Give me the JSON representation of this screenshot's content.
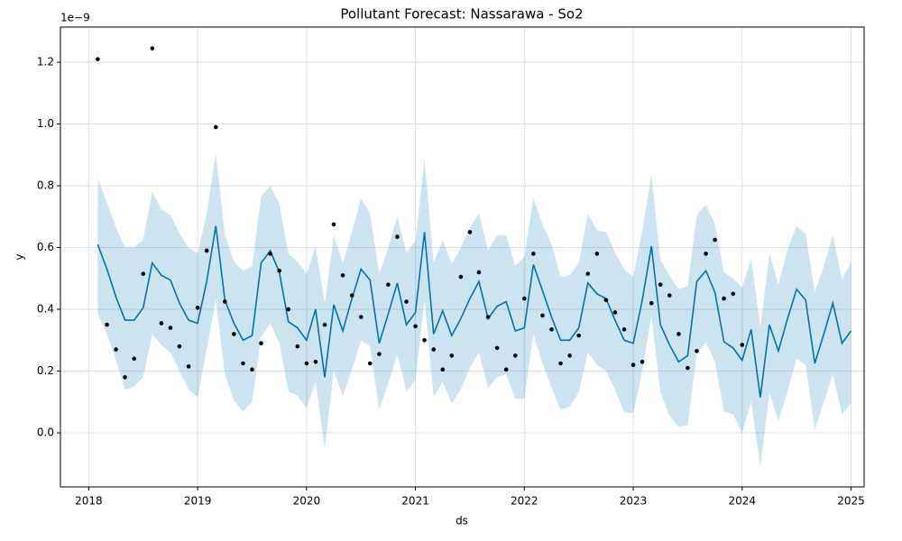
{
  "chart_data": {
    "type": "line",
    "title": "Pollutant Forecast: Nassarawa - So2",
    "xlabel": "ds",
    "ylabel": "y",
    "y_offset_label": "1e−9",
    "x": [
      2018.083,
      2018.167,
      2018.25,
      2018.333,
      2018.417,
      2018.5,
      2018.583,
      2018.667,
      2018.75,
      2018.833,
      2018.917,
      2019,
      2019.083,
      2019.167,
      2019.25,
      2019.333,
      2019.417,
      2019.5,
      2019.583,
      2019.667,
      2019.75,
      2019.833,
      2019.917,
      2020,
      2020.083,
      2020.167,
      2020.25,
      2020.333,
      2020.417,
      2020.5,
      2020.583,
      2020.667,
      2020.75,
      2020.833,
      2020.917,
      2021,
      2021.083,
      2021.167,
      2021.25,
      2021.333,
      2021.417,
      2021.5,
      2021.583,
      2021.667,
      2021.75,
      2021.833,
      2021.917,
      2022,
      2022.083,
      2022.167,
      2022.25,
      2022.333,
      2022.417,
      2022.5,
      2022.583,
      2022.667,
      2022.75,
      2022.833,
      2022.917,
      2023,
      2023.083,
      2023.167,
      2023.25,
      2023.333,
      2023.417,
      2023.5,
      2023.583,
      2023.667,
      2023.75,
      2023.833,
      2023.917,
      2024,
      2024.083,
      2024.167,
      2024.25,
      2024.333,
      2024.417,
      2024.5,
      2024.583,
      2024.667,
      2024.75,
      2024.833,
      2024.917,
      2025
    ],
    "series": [
      {
        "color": "#0072B2",
        "values": [
          0.61,
          0.53,
          0.44,
          0.365,
          0.365,
          0.405,
          0.55,
          0.51,
          0.495,
          0.42,
          0.365,
          0.355,
          0.49,
          0.67,
          0.43,
          0.355,
          0.3,
          0.315,
          0.55,
          0.59,
          0.52,
          0.36,
          0.34,
          0.3,
          0.4,
          0.18,
          0.415,
          0.33,
          0.435,
          0.53,
          0.495,
          0.29,
          0.385,
          0.485,
          0.35,
          0.39,
          0.65,
          0.32,
          0.395,
          0.315,
          0.37,
          0.435,
          0.49,
          0.37,
          0.41,
          0.425,
          0.33,
          0.34,
          0.545,
          0.46,
          0.375,
          0.3,
          0.3,
          0.34,
          0.485,
          0.45,
          0.435,
          0.365,
          0.3,
          0.29,
          0.43,
          0.605,
          0.35,
          0.285,
          0.23,
          0.25,
          0.49,
          0.525,
          0.455,
          0.295,
          0.275,
          0.235,
          0.335,
          0.115,
          0.35,
          0.265,
          0.37,
          0.465,
          0.43,
          0.225,
          0.32,
          0.42,
          0.29,
          0.33
        ]
      }
    ],
    "band": {
      "color": "#0072B2",
      "upper": [
        0.825,
        0.745,
        0.665,
        0.6,
        0.6,
        0.625,
        0.78,
        0.725,
        0.705,
        0.645,
        0.6,
        0.58,
        0.71,
        0.905,
        0.64,
        0.555,
        0.525,
        0.54,
        0.765,
        0.8,
        0.74,
        0.58,
        0.555,
        0.515,
        0.605,
        0.42,
        0.64,
        0.55,
        0.65,
        0.76,
        0.71,
        0.515,
        0.6,
        0.7,
        0.585,
        0.62,
        0.885,
        0.55,
        0.625,
        0.545,
        0.6,
        0.665,
        0.71,
        0.59,
        0.64,
        0.64,
        0.54,
        0.57,
        0.76,
        0.675,
        0.61,
        0.505,
        0.51,
        0.55,
        0.71,
        0.655,
        0.65,
        0.585,
        0.53,
        0.505,
        0.655,
        0.835,
        0.56,
        0.51,
        0.465,
        0.475,
        0.705,
        0.74,
        0.675,
        0.52,
        0.5,
        0.47,
        0.565,
        0.34,
        0.58,
        0.48,
        0.595,
        0.67,
        0.645,
        0.455,
        0.54,
        0.64,
        0.495,
        0.555
      ],
      "lower": [
        0.385,
        0.32,
        0.235,
        0.14,
        0.15,
        0.18,
        0.32,
        0.285,
        0.26,
        0.2,
        0.14,
        0.115,
        0.27,
        0.43,
        0.19,
        0.105,
        0.07,
        0.1,
        0.31,
        0.355,
        0.29,
        0.135,
        0.12,
        0.08,
        0.165,
        -0.05,
        0.2,
        0.12,
        0.205,
        0.3,
        0.28,
        0.075,
        0.16,
        0.255,
        0.135,
        0.17,
        0.43,
        0.115,
        0.165,
        0.095,
        0.14,
        0.21,
        0.26,
        0.145,
        0.18,
        0.19,
        0.11,
        0.11,
        0.32,
        0.225,
        0.145,
        0.075,
        0.085,
        0.13,
        0.26,
        0.22,
        0.2,
        0.14,
        0.065,
        0.065,
        0.2,
        0.38,
        0.13,
        0.055,
        0.02,
        0.025,
        0.255,
        0.295,
        0.23,
        0.07,
        0.06,
        0.0,
        0.1,
        -0.11,
        0.13,
        0.04,
        0.135,
        0.24,
        0.22,
        0.01,
        0.1,
        0.19,
        0.06,
        0.095
      ]
    },
    "points": {
      "color": "#000000",
      "values": [
        1.21,
        0.35,
        0.27,
        0.18,
        0.24,
        0.515,
        1.245,
        0.355,
        0.34,
        0.28,
        0.215,
        0.405,
        0.59,
        0.99,
        0.425,
        0.32,
        0.225,
        0.205,
        0.29,
        0.58,
        0.525,
        0.4,
        0.28,
        0.225,
        0.23,
        0.35,
        0.675,
        0.51,
        0.445,
        0.375,
        0.225,
        0.255,
        0.48,
        0.635,
        0.425,
        0.345,
        0.3,
        0.27,
        0.205,
        0.25,
        0.505,
        0.65,
        0.52,
        0.375,
        0.275,
        0.205,
        0.25,
        0.435,
        0.58,
        0.38,
        0.335,
        0.225,
        0.25,
        0.315,
        0.515,
        0.58,
        0.43,
        0.39,
        0.335,
        0.22,
        0.23,
        0.42,
        0.48,
        0.445,
        0.32,
        0.21,
        0.265,
        0.58,
        0.625,
        0.435,
        0.45,
        0.285,
        null,
        null,
        null,
        null,
        null,
        null,
        null,
        null,
        null,
        null,
        null,
        null
      ]
    },
    "xlim": [
      2017.74,
      2025.12
    ],
    "ylim": [
      -0.175,
      1.314
    ],
    "xticks": [
      2018,
      2019,
      2020,
      2021,
      2022,
      2023,
      2024,
      2025
    ],
    "yticks": [
      {
        "value": 0,
        "label": "0.0"
      },
      0.2,
      0.4,
      0.6,
      0.8,
      {
        "value": 1,
        "label": "1.0"
      },
      1.2
    ],
    "grid": true
  }
}
